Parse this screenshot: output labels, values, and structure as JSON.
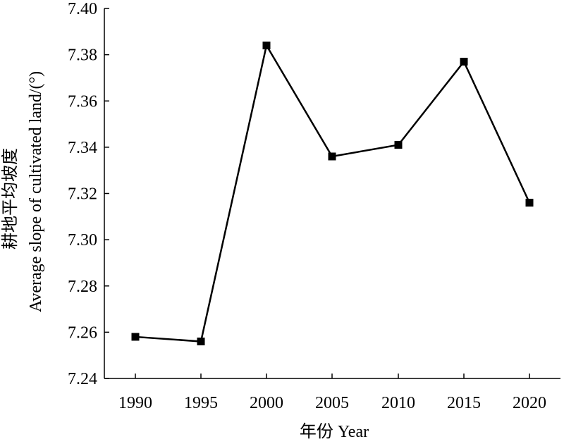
{
  "chart_data": {
    "type": "line",
    "xlabel": "年份 Year",
    "ylabel_cn": "耕地平均坡度",
    "ylabel_en": "Average slope of cultivated land/(°)",
    "categories": [
      "1990",
      "1995",
      "2000",
      "2005",
      "2010",
      "2015",
      "2020"
    ],
    "series": [
      {
        "values": [
          7.258,
          7.256,
          7.384,
          7.336,
          7.341,
          7.377,
          7.316
        ]
      }
    ],
    "ylim": [
      7.24,
      7.4
    ],
    "yticks": [
      7.24,
      7.26,
      7.28,
      7.3,
      7.32,
      7.34,
      7.36,
      7.38,
      7.4
    ],
    "ytick_labels": [
      "7.24",
      "7.26",
      "7.28",
      "7.30",
      "7.32",
      "7.34",
      "7.36",
      "7.38",
      "7.40"
    ],
    "grid": false,
    "legend": "none",
    "line_color": "#000000",
    "marker": "square"
  }
}
